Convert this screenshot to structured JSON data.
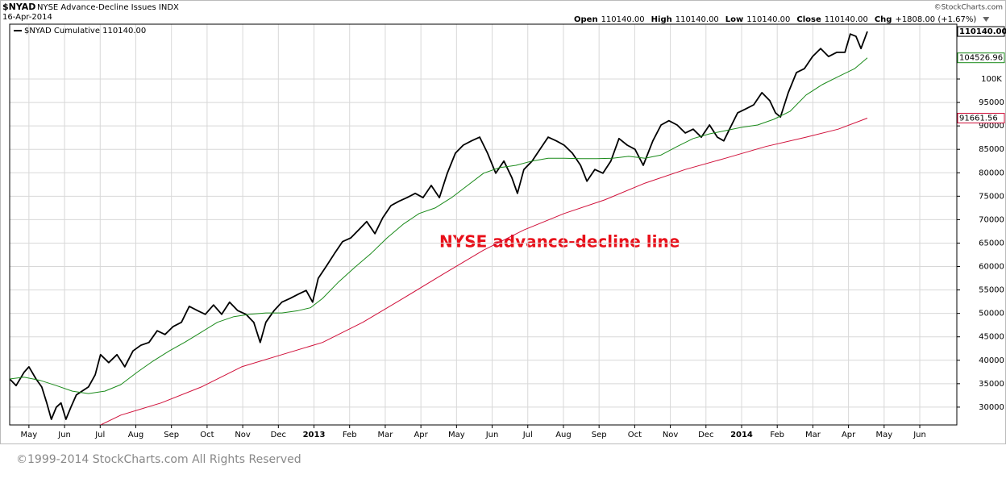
{
  "chart_data": {
    "type": "line",
    "symbol": "$NYAD",
    "title": "NYSE Advance-Decline Issues INDX",
    "date": "16-Apr-2014",
    "credit": "©StockCharts.com",
    "quote": [
      {
        "label": "Open",
        "value": "110140.00"
      },
      {
        "label": "High",
        "value": "110140.00"
      },
      {
        "label": "Low",
        "value": "110140.00"
      },
      {
        "label": "Close",
        "value": "110140.00"
      },
      {
        "label": "Chg",
        "value": "+1808.00 (+1.67%)"
      }
    ],
    "annotation": "NYSE advance-decline line",
    "footer": "©1999-2014 StockCharts.com All Rights Reserved",
    "grid": true,
    "xlim": [
      -0.54,
      26.04
    ],
    "xticks": [
      {
        "value": 0,
        "label": "May"
      },
      {
        "value": 1,
        "label": "Jun"
      },
      {
        "value": 2,
        "label": "Jul"
      },
      {
        "value": 3,
        "label": "Aug"
      },
      {
        "value": 4,
        "label": "Sep"
      },
      {
        "value": 5,
        "label": "Oct"
      },
      {
        "value": 6,
        "label": "Nov"
      },
      {
        "value": 7,
        "label": "Dec"
      },
      {
        "value": 8,
        "label": "2013"
      },
      {
        "value": 9,
        "label": "Feb"
      },
      {
        "value": 10,
        "label": "Mar"
      },
      {
        "value": 11,
        "label": "Apr"
      },
      {
        "value": 12,
        "label": "May"
      },
      {
        "value": 13,
        "label": "Jun"
      },
      {
        "value": 14,
        "label": "Jul"
      },
      {
        "value": 15,
        "label": "Aug"
      },
      {
        "value": 16,
        "label": "Sep"
      },
      {
        "value": 17,
        "label": "Oct"
      },
      {
        "value": 18,
        "label": "Nov"
      },
      {
        "value": 19,
        "label": "Dec"
      },
      {
        "value": 20,
        "label": "2014"
      },
      {
        "value": 21,
        "label": "Feb"
      },
      {
        "value": 22,
        "label": "Mar"
      },
      {
        "value": 23,
        "label": "Apr"
      },
      {
        "value": 24,
        "label": "May"
      },
      {
        "value": 25,
        "label": "Jun"
      }
    ],
    "ylim": [
      26200,
      111700
    ],
    "yticks": [
      30000,
      35000,
      40000,
      45000,
      50000,
      55000,
      60000,
      65000,
      70000,
      75000,
      80000,
      85000,
      90000,
      95000,
      {
        "value": 100000,
        "label": "100K"
      }
    ],
    "series": [
      {
        "name": "$NYAD Cumulative 110140.00",
        "color": "#000000",
        "end_label": "110140.00",
        "x": [
          -0.54,
          -0.36,
          -0.14,
          0,
          0.2,
          0.36,
          0.5,
          0.63,
          0.77,
          0.9,
          1.04,
          1.18,
          1.33,
          1.49,
          1.67,
          1.86,
          2.01,
          2.24,
          2.47,
          2.69,
          2.92,
          3.14,
          3.37,
          3.6,
          3.82,
          4.05,
          4.28,
          4.5,
          4.73,
          4.95,
          5.18,
          5.41,
          5.63,
          5.86,
          6.09,
          6.31,
          6.49,
          6.65,
          6.88,
          7.1,
          7.33,
          7.56,
          7.78,
          7.96,
          8.12,
          8.35,
          8.57,
          8.8,
          9.03,
          9.25,
          9.48,
          9.71,
          9.93,
          10.16,
          10.38,
          10.61,
          10.84,
          11.06,
          11.29,
          11.52,
          11.74,
          11.97,
          12.19,
          12.42,
          12.65,
          12.87,
          13.1,
          13.33,
          13.55,
          13.71,
          13.89,
          14.12,
          14.34,
          14.57,
          14.8,
          15.02,
          15.25,
          15.48,
          15.66,
          15.88,
          16.11,
          16.33,
          16.56,
          16.79,
          17.01,
          17.24,
          17.51,
          17.74,
          17.96,
          18.19,
          18.42,
          18.64,
          18.87,
          19.1,
          19.32,
          19.5,
          19.66,
          19.89,
          20.11,
          20.34,
          20.57,
          20.79,
          20.95,
          21.09,
          21.31,
          21.54,
          21.76,
          21.99,
          22.22,
          22.44,
          22.67,
          22.9,
          23.05,
          23.21,
          23.35,
          23.53
        ],
        "values": [
          36000,
          34600,
          37400,
          38600,
          36000,
          34300,
          30900,
          27400,
          30000,
          30900,
          27400,
          30000,
          32600,
          33400,
          34300,
          36900,
          41200,
          39500,
          41200,
          38600,
          42000,
          43200,
          43800,
          46300,
          45500,
          47200,
          48100,
          51500,
          50600,
          49800,
          51800,
          49800,
          52400,
          50600,
          49800,
          48100,
          43800,
          48100,
          50600,
          52400,
          53200,
          54100,
          54900,
          52400,
          57500,
          60100,
          62700,
          65300,
          66100,
          67800,
          69600,
          67000,
          70400,
          73000,
          73900,
          74700,
          75600,
          74700,
          77300,
          74700,
          79900,
          84200,
          85900,
          86800,
          87600,
          84200,
          79900,
          82500,
          79000,
          75600,
          80700,
          82500,
          85000,
          87600,
          86800,
          85900,
          84200,
          81600,
          78200,
          80700,
          79900,
          82500,
          87300,
          85900,
          85000,
          81600,
          86800,
          90200,
          91100,
          90200,
          88500,
          89300,
          87600,
          90200,
          87600,
          86800,
          89300,
          92800,
          93600,
          94500,
          97100,
          95400,
          92800,
          91900,
          97100,
          101400,
          102200,
          104800,
          106500,
          104800,
          105700,
          105700,
          109600,
          109100,
          106500,
          110140
        ]
      },
      {
        "color": "#1a8a1a",
        "end_label": "104526.96",
        "x": [
          -0.54,
          -0.14,
          0.32,
          0.77,
          1.22,
          1.67,
          2.13,
          2.58,
          3.03,
          3.48,
          3.94,
          4.39,
          4.84,
          5.29,
          5.75,
          6.2,
          6.65,
          7.1,
          7.56,
          7.9,
          8.24,
          8.69,
          9.14,
          9.59,
          10.05,
          10.5,
          10.95,
          11.4,
          11.86,
          12.31,
          12.76,
          13.21,
          13.67,
          14.12,
          14.57,
          15.02,
          15.48,
          15.93,
          16.38,
          16.83,
          17.29,
          17.74,
          18.19,
          18.64,
          19.1,
          19.55,
          20,
          20.45,
          20.9,
          21.36,
          21.81,
          22.26,
          22.71,
          23.17,
          23.53
        ],
        "values": [
          36000,
          36400,
          35700,
          34600,
          33400,
          32900,
          33400,
          34800,
          37400,
          39800,
          42000,
          43900,
          46000,
          48100,
          49300,
          49800,
          50100,
          50100,
          50600,
          51200,
          53200,
          56700,
          59800,
          62700,
          66100,
          69000,
          71300,
          72500,
          74700,
          77300,
          79900,
          81100,
          81600,
          82500,
          83100,
          83100,
          83000,
          83000,
          83100,
          83500,
          83100,
          83800,
          85600,
          87300,
          88300,
          89000,
          89700,
          90200,
          91400,
          93100,
          96600,
          98800,
          100500,
          102200,
          104526.96
        ]
      },
      {
        "color": "#d0103a",
        "end_label": "91661.56",
        "x": [
          2.01,
          2.58,
          3.71,
          4.84,
          5.97,
          7.1,
          8.24,
          9.37,
          10.5,
          11.63,
          12.76,
          13.89,
          15.02,
          16.15,
          17.29,
          18.42,
          19.55,
          20.68,
          21.81,
          22.71,
          23.53
        ],
        "values": [
          26200,
          28300,
          30900,
          34300,
          38600,
          41200,
          43800,
          48100,
          53200,
          58400,
          63500,
          67800,
          71300,
          74200,
          77800,
          80700,
          83100,
          85600,
          87600,
          89300,
          91661.56
        ]
      }
    ]
  }
}
